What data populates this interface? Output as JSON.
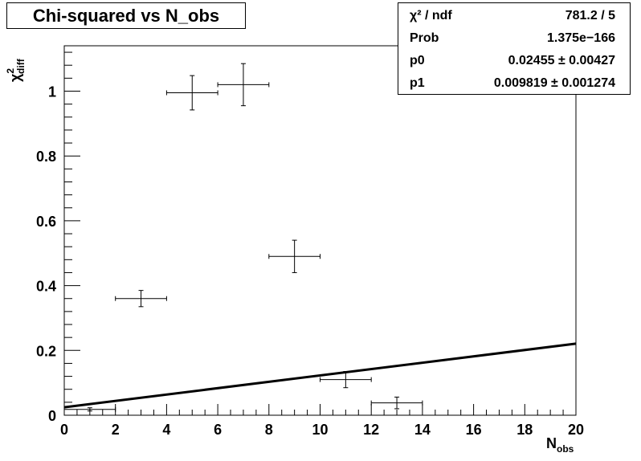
{
  "chart_data": {
    "type": "scatter",
    "title": "Chi-squared vs N_obs",
    "xlabel": {
      "main": "N",
      "sub": "obs"
    },
    "ylabel": {
      "main": "χ",
      "sup": "2",
      "sub": "diff"
    },
    "xlim": [
      0,
      20
    ],
    "ylim": [
      0,
      1.14
    ],
    "x_ticks": [
      "0",
      "2",
      "4",
      "6",
      "8",
      "10",
      "12",
      "14",
      "16",
      "18",
      "20"
    ],
    "y_ticks": [
      "0",
      "0.2",
      "0.4",
      "0.6",
      "0.8",
      "1"
    ],
    "grid": false,
    "points": [
      {
        "x": 1,
        "y": 0.018,
        "xerr": 1,
        "yerr": 0.005
      },
      {
        "x": 3,
        "y": 0.36,
        "xerr": 1,
        "yerr": 0.025
      },
      {
        "x": 5,
        "y": 0.995,
        "xerr": 1,
        "yerr": 0.053
      },
      {
        "x": 7,
        "y": 1.02,
        "xerr": 1,
        "yerr": 0.065
      },
      {
        "x": 9,
        "y": 0.49,
        "xerr": 1,
        "yerr": 0.05
      },
      {
        "x": 11,
        "y": 0.11,
        "xerr": 1,
        "yerr": 0.025
      },
      {
        "x": 13,
        "y": 0.038,
        "xerr": 1,
        "yerr": 0.018
      }
    ],
    "fit": {
      "type": "linear",
      "p0": 0.02455,
      "p1": 0.009819,
      "x_range": [
        0,
        20
      ]
    }
  },
  "stats": {
    "rows": [
      {
        "label": "χ² / ndf",
        "value": "781.2 / 5"
      },
      {
        "label": "Prob",
        "value": "1.375e−166"
      },
      {
        "label": "p0",
        "value": "0.02455 ± 0.00427"
      },
      {
        "label": "p1",
        "value": "0.009819 ± 0.001274"
      }
    ]
  }
}
